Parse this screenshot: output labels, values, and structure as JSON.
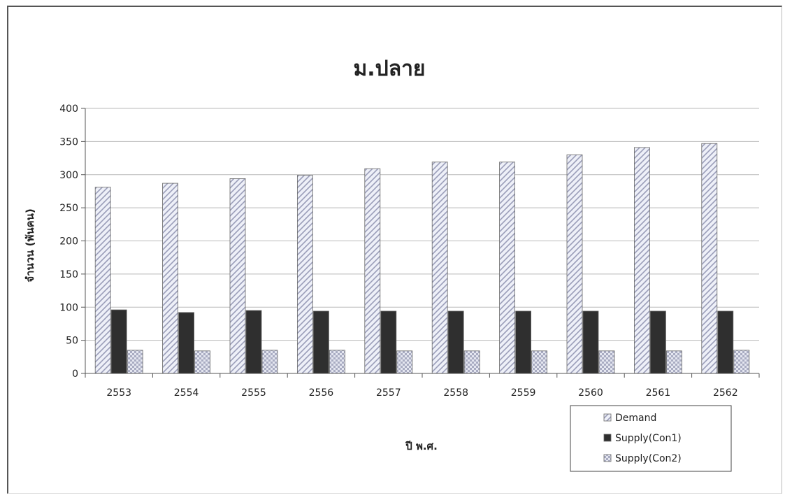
{
  "chart_data": {
    "type": "bar",
    "title": "ม.ปลาย",
    "xlabel": "ปี พ.ศ.",
    "ylabel": "จำนวน (พันคน)",
    "ylim": [
      0,
      400
    ],
    "yticks": [
      0,
      50,
      100,
      150,
      200,
      250,
      300,
      350,
      400
    ],
    "grid": true,
    "legend_position": "bottom-right",
    "categories": [
      "2553",
      "2554",
      "2555",
      "2556",
      "2557",
      "2558",
      "2559",
      "2560",
      "2561",
      "2562"
    ],
    "series": [
      {
        "name": "Demand",
        "pattern": "diagonal-hatch",
        "color": "#d9dbea",
        "values": [
          281,
          287,
          294,
          299,
          309,
          319,
          319,
          330,
          341,
          347
        ]
      },
      {
        "name": "Supply(Con1)",
        "pattern": "solid",
        "color": "#2f2f2f",
        "values": [
          96,
          92,
          95,
          94,
          94,
          94,
          94,
          94,
          94,
          94
        ]
      },
      {
        "name": "Supply(Con2)",
        "pattern": "checker",
        "color": "#d6d8e6",
        "values": [
          35,
          34,
          35,
          35,
          34,
          34,
          34,
          34,
          34,
          35
        ]
      }
    ]
  }
}
